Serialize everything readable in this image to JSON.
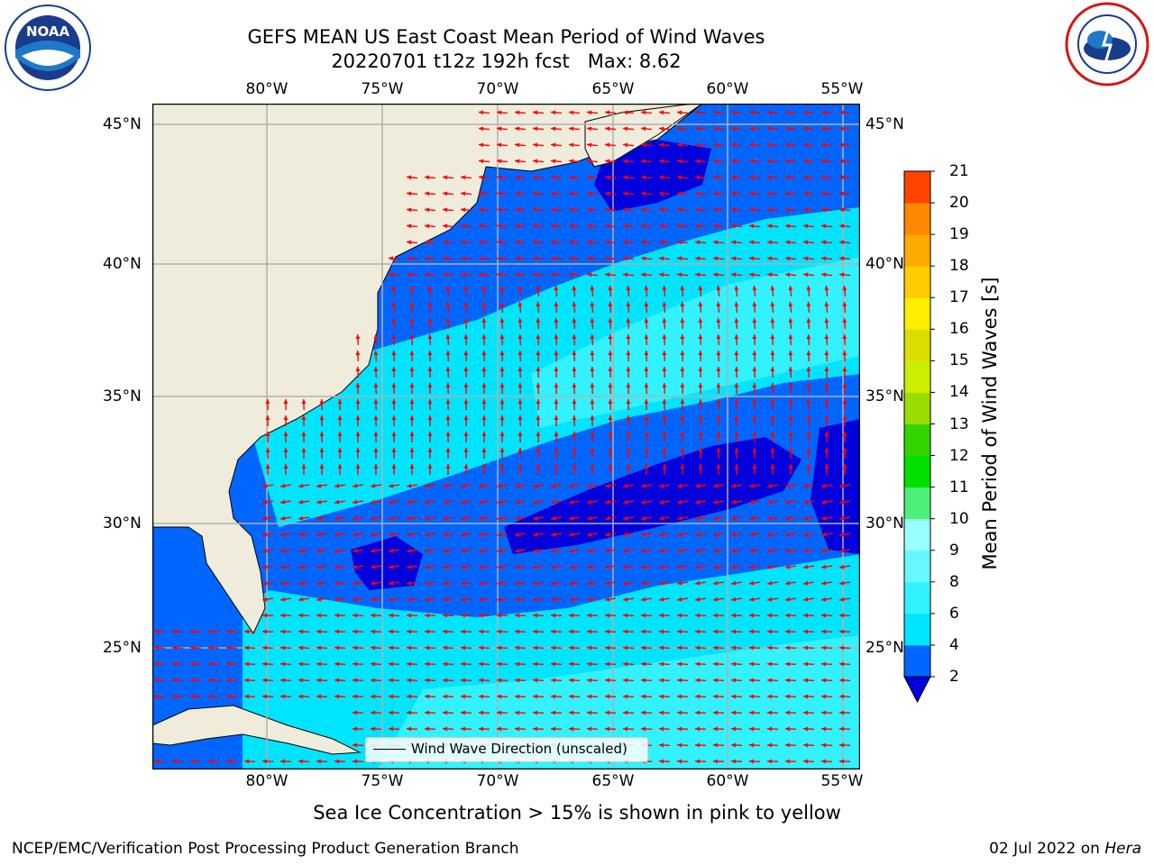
{
  "title": {
    "line1": "GEFS MEAN US East Coast Mean Period of Wind Waves",
    "line2": "20220701 t12z 192h fcst   Max: 8.62"
  },
  "map": {
    "lon_ticks": [
      "80°W",
      "75°W",
      "70°W",
      "65°W",
      "60°W",
      "55°W"
    ],
    "lat_ticks": [
      "45°N",
      "40°N",
      "35°N",
      "30°N",
      "25°N"
    ],
    "legend_label": "Wind Wave Direction (unscaled)",
    "arrow_color": "#ff0000",
    "land_color": "#efecdc",
    "gridline_color": "#b0b0b0"
  },
  "colorbar": {
    "label": "Mean Period of Wind Waves [s]",
    "ticks": [
      "2",
      "4",
      "6",
      "8",
      "9",
      "10",
      "11",
      "12",
      "13",
      "14",
      "15",
      "16",
      "17",
      "18",
      "19",
      "20",
      "21"
    ],
    "colors": [
      "#0066ff",
      "#00e5ff",
      "#33f2ff",
      "#66f7ff",
      "#99ffff",
      "#4cf07a",
      "#00e000",
      "#33d400",
      "#99dd00",
      "#ccee00",
      "#dddd00",
      "#ffee00",
      "#ffcc00",
      "#ffaa00",
      "#ff8800",
      "#ff4400",
      "#ff0000"
    ],
    "extend_color": "#0000dd"
  },
  "note": "Sea Ice Concentration > 15% is shown in pink to yellow",
  "footer": {
    "left": "NCEP/EMC/Verification Post Processing Product Generation Branch",
    "date": "02 Jul 2022 on ",
    "machine": "Hera"
  },
  "logos": {
    "left": "noaa-logo",
    "right": "nws-logo"
  }
}
